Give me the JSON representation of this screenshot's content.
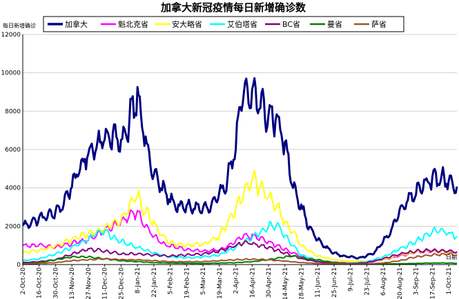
{
  "chart_data": {
    "type": "line",
    "title": "加拿大新冠疫情每日新增确诊数",
    "ylabel": "每日新增确诊",
    "xlabel": "",
    "xlabel_right": "日期",
    "ylim": [
      0,
      12000
    ],
    "yticks": [
      0,
      2000,
      4000,
      6000,
      8000,
      10000,
      12000
    ],
    "grid": true,
    "legend_position": "top",
    "x_start": "2020-10-02",
    "x_end": "2021-10-08",
    "x_tick_labels": [
      "2-Oct-20",
      "16-Oct-20",
      "30-Oct-20",
      "13-Nov-20",
      "27-Nov-20",
      "11-Dec-20",
      "25-Dec-20",
      "8-Jan-21",
      "22-Jan-21",
      "5-Feb-21",
      "19-Feb-21",
      "5-Mar-21",
      "19-Mar-21",
      "2-Apr-21",
      "16-Apr-21",
      "30-Apr-21",
      "14-May-21",
      "28-May-21",
      "11-Jun-21",
      "25-Jun-21",
      "9-Jul-21",
      "23-Jul-21",
      "6-Aug-21",
      "20-Aug-21",
      "3-Sep-21",
      "17-Sep-21",
      "1-Oct-21"
    ],
    "x_tick_dates": [
      "2020-10-02",
      "2020-10-16",
      "2020-10-30",
      "2020-11-13",
      "2020-11-27",
      "2020-12-11",
      "2020-12-25",
      "2021-01-08",
      "2021-01-22",
      "2021-02-05",
      "2021-02-19",
      "2021-03-05",
      "2021-03-19",
      "2021-04-02",
      "2021-04-16",
      "2021-04-30",
      "2021-05-14",
      "2021-05-28",
      "2021-06-11",
      "2021-06-25",
      "2021-07-09",
      "2021-07-23",
      "2021-08-06",
      "2021-08-20",
      "2021-09-03",
      "2021-09-17",
      "2021-10-01"
    ],
    "series": [
      {
        "name": "加拿大",
        "color": "#000080",
        "width": 3,
        "points": [
          [
            "2020-10-02",
            2000
          ],
          [
            "2020-10-16",
            2400
          ],
          [
            "2020-10-30",
            2700
          ],
          [
            "2020-11-06",
            3200
          ],
          [
            "2020-11-13",
            4200
          ],
          [
            "2020-11-20",
            5000
          ],
          [
            "2020-11-27",
            5800
          ],
          [
            "2020-12-04",
            6300
          ],
          [
            "2020-12-11",
            6600
          ],
          [
            "2020-12-18",
            6800
          ],
          [
            "2020-12-25",
            6200
          ],
          [
            "2020-12-31",
            7200
          ],
          [
            "2021-01-02",
            8000
          ],
          [
            "2021-01-05",
            8400
          ],
          [
            "2021-01-08",
            9000
          ],
          [
            "2021-01-12",
            7500
          ],
          [
            "2021-01-16",
            6000
          ],
          [
            "2021-01-22",
            4700
          ],
          [
            "2021-01-29",
            4000
          ],
          [
            "2021-02-05",
            3400
          ],
          [
            "2021-02-12",
            3000
          ],
          [
            "2021-02-19",
            3000
          ],
          [
            "2021-02-26",
            3000
          ],
          [
            "2021-03-05",
            2900
          ],
          [
            "2021-03-12",
            3000
          ],
          [
            "2021-03-19",
            3600
          ],
          [
            "2021-03-26",
            4500
          ],
          [
            "2021-04-02",
            6200
          ],
          [
            "2021-04-06",
            8200
          ],
          [
            "2021-04-09",
            9000
          ],
          [
            "2021-04-13",
            8500
          ],
          [
            "2021-04-16",
            9000
          ],
          [
            "2021-04-23",
            8400
          ],
          [
            "2021-04-30",
            7700
          ],
          [
            "2021-05-07",
            7700
          ],
          [
            "2021-05-14",
            6200
          ],
          [
            "2021-05-21",
            4200
          ],
          [
            "2021-05-28",
            3000
          ],
          [
            "2021-06-04",
            1900
          ],
          [
            "2021-06-11",
            1300
          ],
          [
            "2021-06-18",
            900
          ],
          [
            "2021-06-25",
            600
          ],
          [
            "2021-07-02",
            450
          ],
          [
            "2021-07-09",
            400
          ],
          [
            "2021-07-16",
            350
          ],
          [
            "2021-07-23",
            450
          ],
          [
            "2021-07-30",
            650
          ],
          [
            "2021-08-06",
            1200
          ],
          [
            "2021-08-13",
            1800
          ],
          [
            "2021-08-20",
            2800
          ],
          [
            "2021-08-27",
            3400
          ],
          [
            "2021-09-03",
            3800
          ],
          [
            "2021-09-10",
            4300
          ],
          [
            "2021-09-17",
            4400
          ],
          [
            "2021-09-24",
            4500
          ],
          [
            "2021-10-01",
            4400
          ],
          [
            "2021-10-08",
            4000
          ]
        ]
      },
      {
        "name": "魁北克省",
        "color": "#ff00ff",
        "width": 2,
        "points": [
          [
            "2020-10-02",
            1000
          ],
          [
            "2020-10-16",
            1000
          ],
          [
            "2020-10-30",
            900
          ],
          [
            "2020-11-13",
            1100
          ],
          [
            "2020-11-27",
            1300
          ],
          [
            "2020-12-11",
            1800
          ],
          [
            "2020-12-25",
            2200
          ],
          [
            "2021-01-02",
            2600
          ],
          [
            "2021-01-08",
            2700
          ],
          [
            "2021-01-15",
            2000
          ],
          [
            "2021-01-22",
            1500
          ],
          [
            "2021-01-29",
            1100
          ],
          [
            "2021-02-05",
            950
          ],
          [
            "2021-02-19",
            800
          ],
          [
            "2021-03-05",
            700
          ],
          [
            "2021-03-19",
            750
          ],
          [
            "2021-04-02",
            1200
          ],
          [
            "2021-04-09",
            1500
          ],
          [
            "2021-04-16",
            1500
          ],
          [
            "2021-04-30",
            1200
          ],
          [
            "2021-05-14",
            800
          ],
          [
            "2021-05-28",
            400
          ],
          [
            "2021-06-11",
            200
          ],
          [
            "2021-06-25",
            120
          ],
          [
            "2021-07-09",
            80
          ],
          [
            "2021-07-23",
            100
          ],
          [
            "2021-08-06",
            250
          ],
          [
            "2021-08-20",
            450
          ],
          [
            "2021-09-03",
            650
          ],
          [
            "2021-09-17",
            700
          ],
          [
            "2021-10-01",
            700
          ],
          [
            "2021-10-08",
            650
          ]
        ]
      },
      {
        "name": "安大略省",
        "color": "#ffff00",
        "width": 2,
        "points": [
          [
            "2020-10-02",
            600
          ],
          [
            "2020-10-16",
            750
          ],
          [
            "2020-10-30",
            950
          ],
          [
            "2020-11-13",
            1300
          ],
          [
            "2020-11-27",
            1600
          ],
          [
            "2020-12-11",
            1900
          ],
          [
            "2020-12-18",
            2200
          ],
          [
            "2020-12-25",
            2300
          ],
          [
            "2021-01-01",
            3000
          ],
          [
            "2021-01-08",
            3700
          ],
          [
            "2021-01-12",
            3000
          ],
          [
            "2021-01-22",
            2200
          ],
          [
            "2021-01-29",
            1500
          ],
          [
            "2021-02-05",
            1100
          ],
          [
            "2021-02-19",
            1000
          ],
          [
            "2021-03-05",
            1050
          ],
          [
            "2021-03-19",
            1500
          ],
          [
            "2021-03-26",
            2200
          ],
          [
            "2021-04-02",
            2900
          ],
          [
            "2021-04-09",
            3800
          ],
          [
            "2021-04-16",
            4500
          ],
          [
            "2021-04-23",
            4000
          ],
          [
            "2021-04-30",
            3500
          ],
          [
            "2021-05-07",
            3100
          ],
          [
            "2021-05-14",
            2200
          ],
          [
            "2021-05-21",
            1700
          ],
          [
            "2021-05-28",
            1000
          ],
          [
            "2021-06-04",
            700
          ],
          [
            "2021-06-11",
            450
          ],
          [
            "2021-06-25",
            250
          ],
          [
            "2021-07-09",
            180
          ],
          [
            "2021-07-23",
            170
          ],
          [
            "2021-08-06",
            250
          ],
          [
            "2021-08-20",
            500
          ],
          [
            "2021-09-03",
            650
          ],
          [
            "2021-09-17",
            750
          ],
          [
            "2021-10-01",
            600
          ],
          [
            "2021-10-08",
            500
          ]
        ]
      },
      {
        "name": "艾伯塔省",
        "color": "#00ffff",
        "width": 2,
        "points": [
          [
            "2020-10-02",
            200
          ],
          [
            "2020-10-16",
            300
          ],
          [
            "2020-10-30",
            550
          ],
          [
            "2020-11-13",
            900
          ],
          [
            "2020-11-27",
            1300
          ],
          [
            "2020-12-04",
            1650
          ],
          [
            "2020-12-11",
            1750
          ],
          [
            "2020-12-18",
            1400
          ],
          [
            "2020-12-25",
            1200
          ],
          [
            "2021-01-08",
            900
          ],
          [
            "2021-01-22",
            600
          ],
          [
            "2021-02-05",
            400
          ],
          [
            "2021-02-19",
            350
          ],
          [
            "2021-03-05",
            400
          ],
          [
            "2021-03-19",
            500
          ],
          [
            "2021-04-02",
            900
          ],
          [
            "2021-04-16",
            1400
          ],
          [
            "2021-04-23",
            1700
          ],
          [
            "2021-04-30",
            2000
          ],
          [
            "2021-05-07",
            2100
          ],
          [
            "2021-05-14",
            1500
          ],
          [
            "2021-05-21",
            1000
          ],
          [
            "2021-05-28",
            500
          ],
          [
            "2021-06-11",
            200
          ],
          [
            "2021-06-25",
            80
          ],
          [
            "2021-07-09",
            60
          ],
          [
            "2021-07-23",
            150
          ],
          [
            "2021-08-06",
            400
          ],
          [
            "2021-08-20",
            800
          ],
          [
            "2021-09-03",
            1200
          ],
          [
            "2021-09-10",
            1500
          ],
          [
            "2021-09-17",
            1700
          ],
          [
            "2021-09-24",
            1800
          ],
          [
            "2021-10-01",
            1600
          ],
          [
            "2021-10-08",
            1500
          ]
        ]
      },
      {
        "name": "BC省",
        "color": "#800080",
        "width": 2,
        "points": [
          [
            "2020-10-02",
            100
          ],
          [
            "2020-10-16",
            150
          ],
          [
            "2020-10-30",
            250
          ],
          [
            "2020-11-13",
            550
          ],
          [
            "2020-11-27",
            800
          ],
          [
            "2020-12-11",
            700
          ],
          [
            "2020-12-25",
            550
          ],
          [
            "2021-01-08",
            550
          ],
          [
            "2021-01-22",
            500
          ],
          [
            "2021-02-05",
            450
          ],
          [
            "2021-02-19",
            500
          ],
          [
            "2021-03-05",
            550
          ],
          [
            "2021-03-19",
            700
          ],
          [
            "2021-04-02",
            1000
          ],
          [
            "2021-04-09",
            1150
          ],
          [
            "2021-04-16",
            1100
          ],
          [
            "2021-04-30",
            900
          ],
          [
            "2021-05-14",
            600
          ],
          [
            "2021-05-28",
            300
          ],
          [
            "2021-06-11",
            150
          ],
          [
            "2021-06-25",
            60
          ],
          [
            "2021-07-09",
            50
          ],
          [
            "2021-07-23",
            100
          ],
          [
            "2021-08-06",
            300
          ],
          [
            "2021-08-20",
            550
          ],
          [
            "2021-09-03",
            700
          ],
          [
            "2021-09-17",
            750
          ],
          [
            "2021-10-01",
            700
          ],
          [
            "2021-10-08",
            650
          ]
        ]
      },
      {
        "name": "曼省",
        "color": "#008000",
        "width": 2,
        "points": [
          [
            "2020-10-02",
            50
          ],
          [
            "2020-10-16",
            100
          ],
          [
            "2020-10-30",
            250
          ],
          [
            "2020-11-13",
            400
          ],
          [
            "2020-11-27",
            400
          ],
          [
            "2020-12-11",
            300
          ],
          [
            "2020-12-25",
            200
          ],
          [
            "2021-01-08",
            150
          ],
          [
            "2021-01-22",
            100
          ],
          [
            "2021-02-05",
            80
          ],
          [
            "2021-02-19",
            70
          ],
          [
            "2021-03-05",
            60
          ],
          [
            "2021-03-19",
            80
          ],
          [
            "2021-04-02",
            100
          ],
          [
            "2021-04-16",
            150
          ],
          [
            "2021-04-30",
            250
          ],
          [
            "2021-05-14",
            400
          ],
          [
            "2021-05-21",
            450
          ],
          [
            "2021-05-28",
            350
          ],
          [
            "2021-06-11",
            250
          ],
          [
            "2021-06-25",
            100
          ],
          [
            "2021-07-09",
            50
          ],
          [
            "2021-07-23",
            30
          ],
          [
            "2021-08-06",
            30
          ],
          [
            "2021-08-20",
            40
          ],
          [
            "2021-09-03",
            60
          ],
          [
            "2021-09-17",
            80
          ],
          [
            "2021-10-01",
            80
          ],
          [
            "2021-10-08",
            70
          ]
        ]
      },
      {
        "name": "萨省",
        "color": "#a0522d",
        "width": 2,
        "points": [
          [
            "2020-10-02",
            30
          ],
          [
            "2020-10-16",
            60
          ],
          [
            "2020-10-30",
            100
          ],
          [
            "2020-11-13",
            200
          ],
          [
            "2020-11-27",
            250
          ],
          [
            "2020-12-11",
            300
          ],
          [
            "2020-12-25",
            250
          ],
          [
            "2021-01-08",
            250
          ],
          [
            "2021-01-22",
            200
          ],
          [
            "2021-02-05",
            150
          ],
          [
            "2021-02-19",
            150
          ],
          [
            "2021-03-05",
            150
          ],
          [
            "2021-03-19",
            200
          ],
          [
            "2021-04-02",
            250
          ],
          [
            "2021-04-16",
            280
          ],
          [
            "2021-04-30",
            250
          ],
          [
            "2021-05-14",
            180
          ],
          [
            "2021-05-28",
            100
          ],
          [
            "2021-06-11",
            60
          ],
          [
            "2021-06-25",
            40
          ],
          [
            "2021-07-09",
            30
          ],
          [
            "2021-07-23",
            30
          ],
          [
            "2021-08-06",
            80
          ],
          [
            "2021-08-20",
            200
          ],
          [
            "2021-09-03",
            400
          ],
          [
            "2021-09-17",
            500
          ],
          [
            "2021-10-01",
            550
          ],
          [
            "2021-10-08",
            500
          ]
        ]
      }
    ]
  }
}
